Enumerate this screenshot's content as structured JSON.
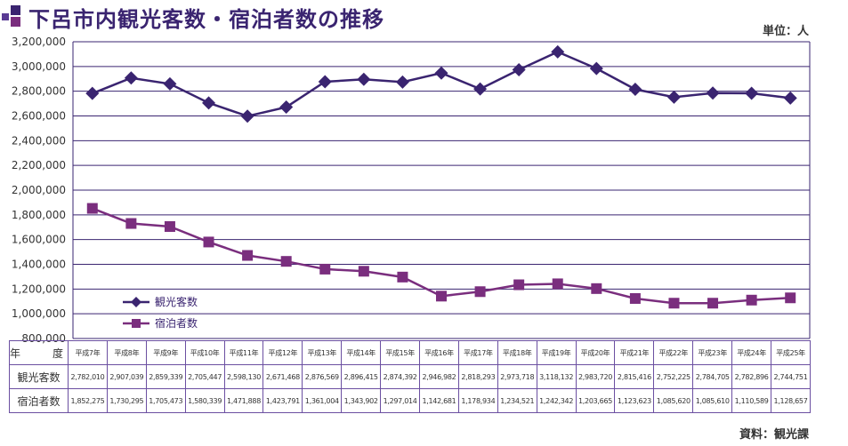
{
  "header": {
    "title": "下呂市内観光客数・宿泊者数の推移",
    "unit": "単位：人",
    "source": "資料：観光課"
  },
  "table": {
    "row_headers": [
      "年　度",
      "観光客数",
      "宿泊者数"
    ],
    "years": [
      "平成7年",
      "平成8年",
      "平成9年",
      "平成10年",
      "平成11年",
      "平成12年",
      "平成13年",
      "平成14年",
      "平成15年",
      "平成16年",
      "平成17年",
      "平成18年",
      "平成19年",
      "平成20年",
      "平成21年",
      "平成22年",
      "平成23年",
      "平成24年",
      "平成25年"
    ],
    "tourists": [
      "2,782,010",
      "2,907,039",
      "2,859,339",
      "2,705,447",
      "2,598,130",
      "2,671,468",
      "2,876,569",
      "2,896,415",
      "2,874,392",
      "2,946,982",
      "2,818,293",
      "2,973,718",
      "3,118,132",
      "2,983,720",
      "2,815,416",
      "2,752,225",
      "2,784,705",
      "2,782,896",
      "2,744,751"
    ],
    "overnight": [
      "1,852,275",
      "1,730,295",
      "1,705,473",
      "1,580,339",
      "1,471,888",
      "1,423,791",
      "1,361,004",
      "1,343,902",
      "1,297,014",
      "1,142,681",
      "1,178,934",
      "1,234,521",
      "1,242,342",
      "1,203,665",
      "1,123,623",
      "1,085,620",
      "1,085,610",
      "1,110,589",
      "1,128,657"
    ]
  },
  "chart_data": {
    "type": "line",
    "title": "下呂市内観光客数・宿泊者数の推移",
    "xlabel": "",
    "ylabel": "",
    "ylim": [
      800000,
      3200000
    ],
    "y_step": 200000,
    "y_tick_labels": [
      "800,000",
      "1,000,000",
      "1,200,000",
      "1,400,000",
      "1,600,000",
      "1,800,000",
      "2,000,000",
      "2,200,000",
      "2,400,000",
      "2,600,000",
      "2,800,000",
      "3,000,000",
      "3,200,000"
    ],
    "grid": true,
    "legend_position": "bottom-left",
    "categories": [
      "平成7年",
      "平成8年",
      "平成9年",
      "平成10年",
      "平成11年",
      "平成12年",
      "平成13年",
      "平成14年",
      "平成15年",
      "平成16年",
      "平成17年",
      "平成18年",
      "平成19年",
      "平成20年",
      "平成21年",
      "平成22年",
      "平成23年",
      "平成24年",
      "平成25年"
    ],
    "series": [
      {
        "name": "観光客数",
        "marker": "diamond",
        "color": "#3a2470",
        "values": [
          2782010,
          2907039,
          2859339,
          2705447,
          2598130,
          2671468,
          2876569,
          2896415,
          2874392,
          2946982,
          2818293,
          2973718,
          3118132,
          2983720,
          2815416,
          2752225,
          2784705,
          2782896,
          2744751
        ]
      },
      {
        "name": "宿泊者数",
        "marker": "square",
        "color": "#7a2e7e",
        "values": [
          1852275,
          1730295,
          1705473,
          1580339,
          1471888,
          1423791,
          1361004,
          1343902,
          1297014,
          1142681,
          1178934,
          1234521,
          1242342,
          1203665,
          1123623,
          1085620,
          1085610,
          1110589,
          1128657
        ]
      }
    ]
  }
}
